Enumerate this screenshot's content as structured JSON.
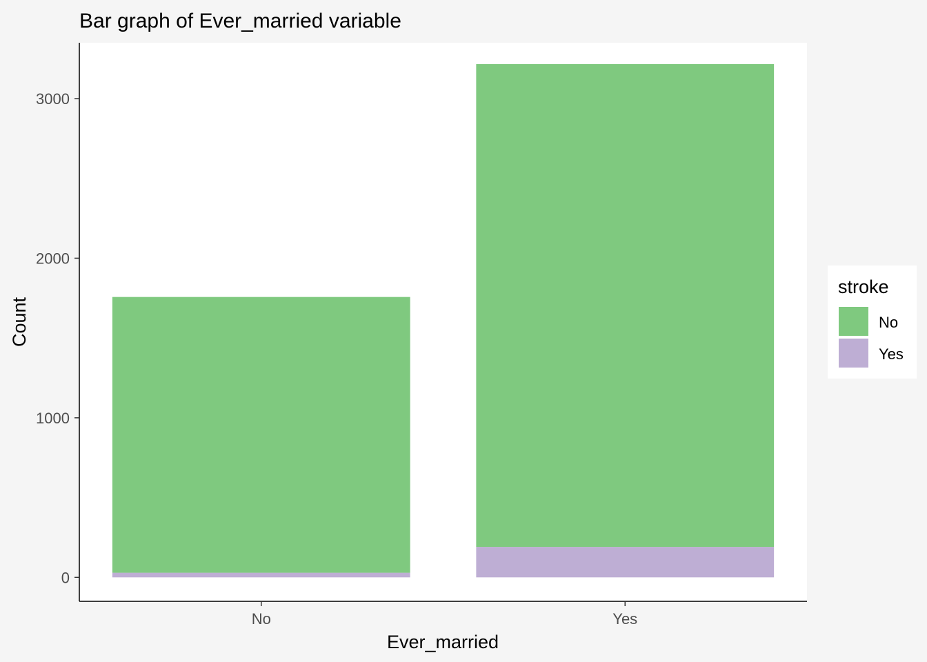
{
  "chart_data": {
    "type": "bar",
    "stacked": true,
    "title": "Bar graph of Ever_married variable",
    "xlabel": "Ever_married",
    "ylabel": "Count",
    "categories": [
      "No",
      "Yes"
    ],
    "series": [
      {
        "name": "No",
        "values": [
          1728,
          3025
        ],
        "color": "#7fc97f"
      },
      {
        "name": "Yes",
        "values": [
          29,
          191
        ],
        "color": "#beaed4"
      }
    ],
    "ylim": [
      -150,
      3350
    ],
    "yticks": [
      0,
      1000,
      2000,
      3000
    ],
    "grid": false,
    "legend": {
      "title": "stroke",
      "position": "right"
    }
  }
}
